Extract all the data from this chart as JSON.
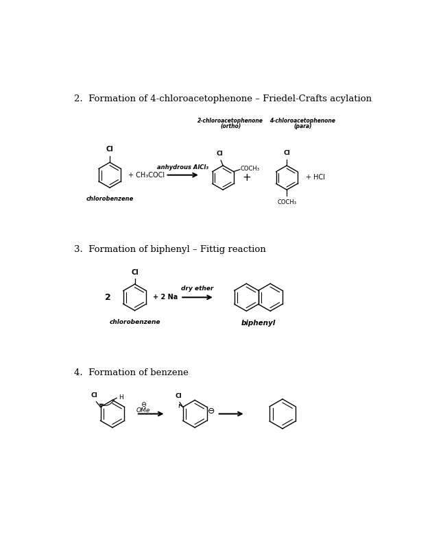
{
  "bg": "#ffffff",
  "s2_title": "2.  Formation of 4-chloroacetophenone – Friedel-Crafts acylation",
  "s3_title": "3.  Formation of biphenyl – Fittig reaction",
  "s4_title": "4.  Formation of benzene",
  "lbl_chlorobenzene": "chlorobenzene",
  "lbl_biphenyl": "biphenyl",
  "lbl_2chloro_l1": "2-chloroacetophenone",
  "lbl_2chloro_l2": "(ortho)",
  "lbl_4chloro_l1": "4-chloroacetophenone",
  "lbl_4chloro_l2": "(para)",
  "reagent_alcl3": "anhydrous AlCl₃",
  "reagent_ether": "dry ether",
  "text_CH3COCl": "+ CH₃COCl",
  "text_2Na": "+ 2 Na",
  "text_HCl": "+ HCl",
  "text_OMe": "OMe",
  "num2": "2"
}
